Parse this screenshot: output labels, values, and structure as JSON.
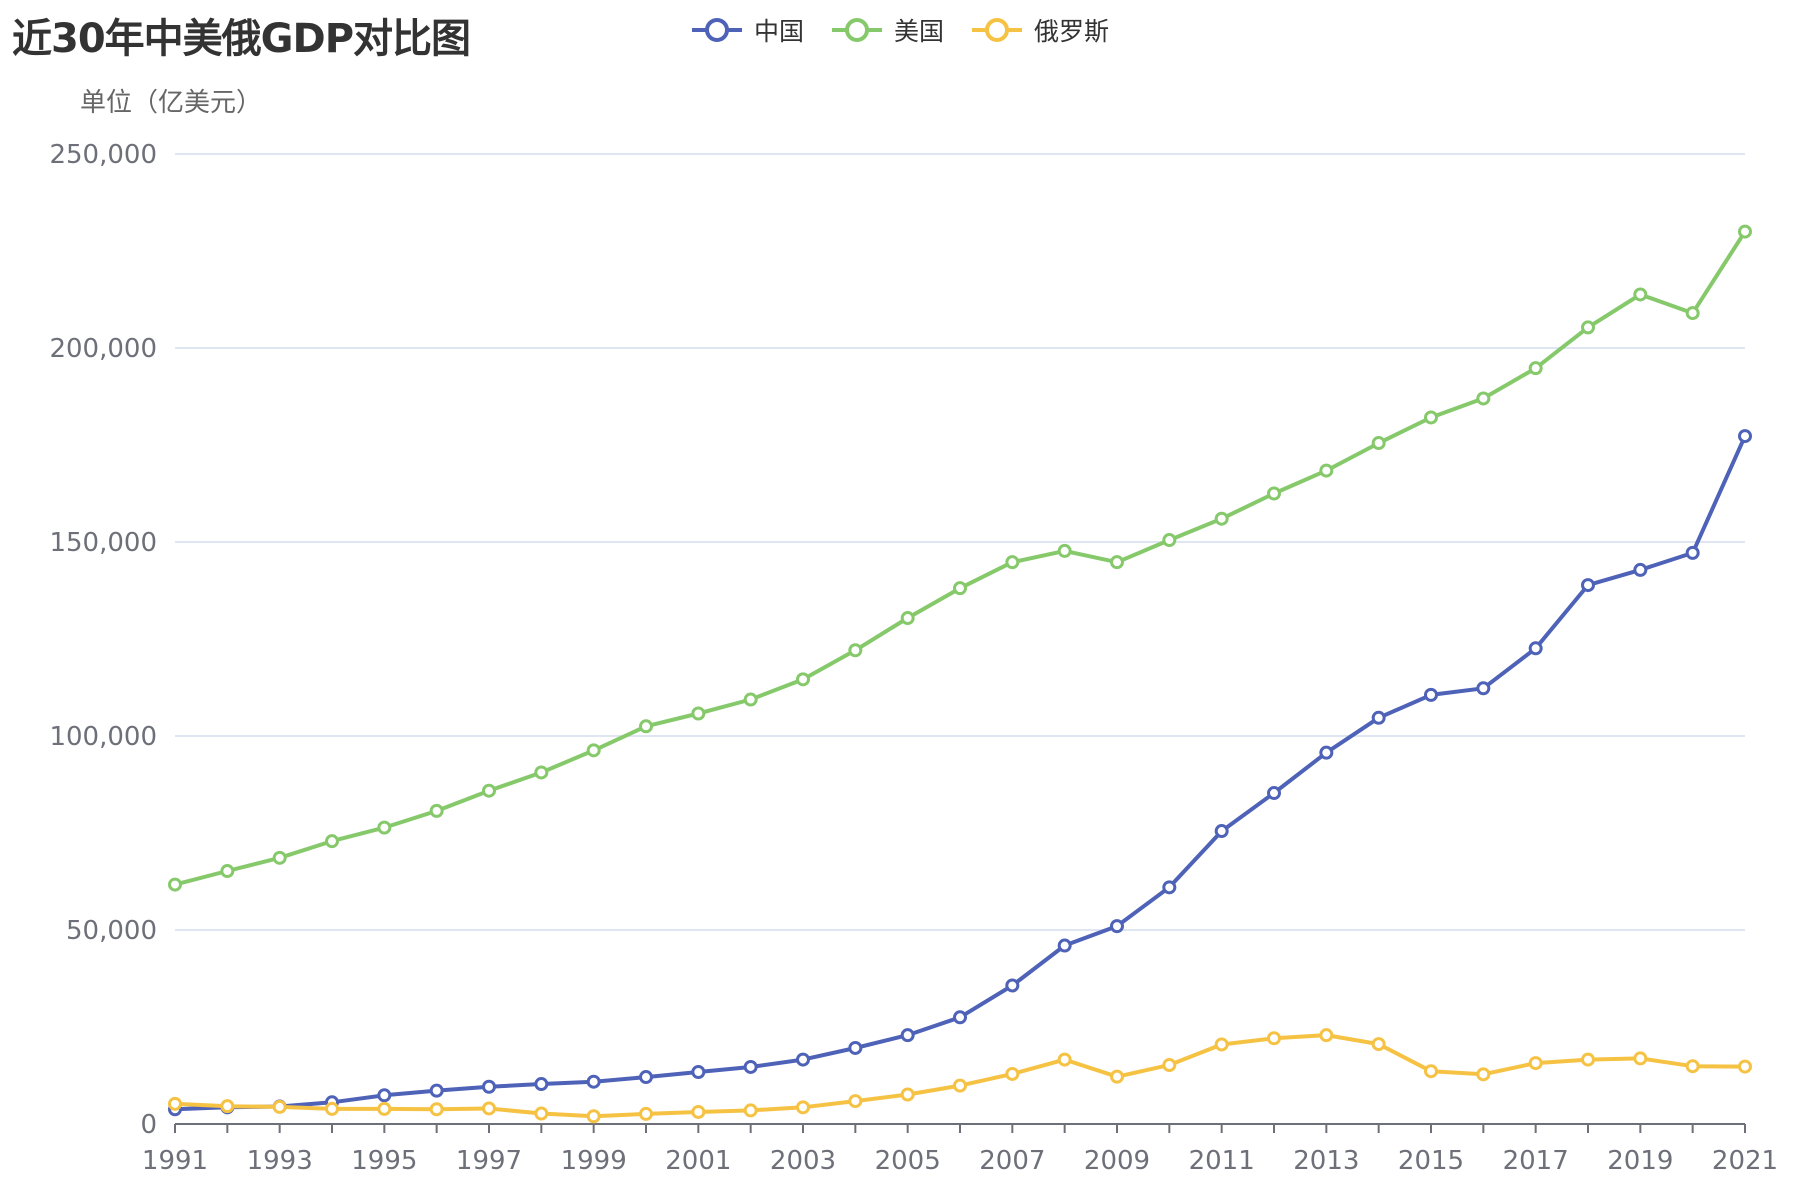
{
  "chart_data": {
    "type": "line",
    "title": "近30年中美俄GDP对比图",
    "ylabel": "单位（亿美元）",
    "xlabel": "",
    "x": [
      1991,
      1992,
      1993,
      1994,
      1995,
      1996,
      1997,
      1998,
      1999,
      2000,
      2001,
      2002,
      2003,
      2004,
      2005,
      2006,
      2007,
      2008,
      2009,
      2010,
      2011,
      2012,
      2013,
      2014,
      2015,
      2016,
      2017,
      2018,
      2019,
      2020,
      2021
    ],
    "xticks": [
      "1991",
      "1993",
      "1995",
      "1997",
      "1999",
      "2001",
      "2003",
      "2005",
      "2007",
      "2009",
      "2011",
      "2013",
      "2015",
      "2017",
      "2019",
      "2021"
    ],
    "ylim": [
      0,
      250000
    ],
    "yticks": [
      "0",
      "50,000",
      "100,000",
      "150,000",
      "200,000",
      "250,000"
    ],
    "grid": true,
    "legend_position": "top-center",
    "series": [
      {
        "name": "中国",
        "color": "#4e62b8",
        "values": [
          3800,
          4300,
          4500,
          5600,
          7400,
          8600,
          9600,
          10300,
          10900,
          12100,
          13400,
          14700,
          16600,
          19600,
          22900,
          27500,
          35700,
          46000,
          51000,
          61000,
          75500,
          85300,
          95700,
          104700,
          110600,
          112300,
          122600,
          138900,
          142800,
          147200,
          177300
        ]
      },
      {
        "name": "美国",
        "color": "#86c96b",
        "values": [
          61700,
          65200,
          68600,
          72900,
          76400,
          80700,
          85900,
          90600,
          96300,
          102500,
          105800,
          109400,
          114600,
          122100,
          130400,
          138100,
          144800,
          147700,
          144800,
          150500,
          156000,
          162500,
          168400,
          175500,
          182100,
          187000,
          194800,
          205300,
          213800,
          209000,
          230000
        ]
      },
      {
        "name": "俄罗斯",
        "color": "#f5c244",
        "values": [
          5200,
          4600,
          4400,
          3900,
          3900,
          3800,
          4000,
          2700,
          2000,
          2600,
          3100,
          3500,
          4300,
          5900,
          7600,
          9900,
          12900,
          16600,
          12200,
          15200,
          20500,
          22100,
          22900,
          20600,
          13600,
          12800,
          15700,
          16600,
          16900,
          14900,
          14800
        ]
      }
    ]
  }
}
